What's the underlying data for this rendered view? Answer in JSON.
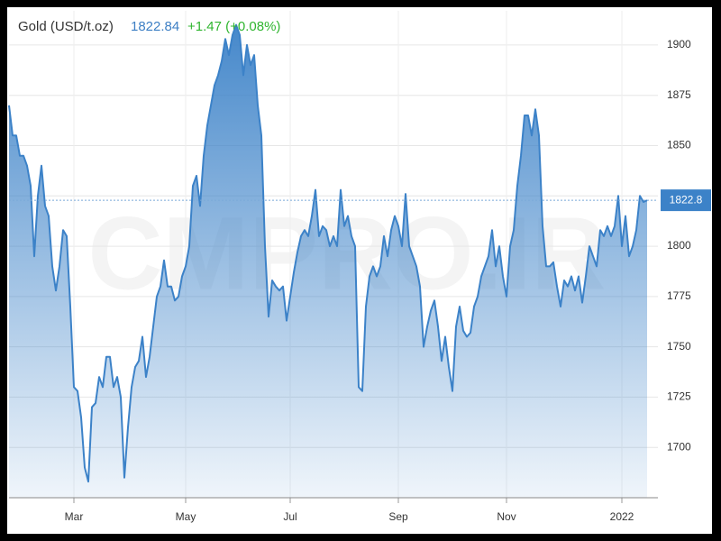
{
  "header": {
    "title": "Gold (USD/t.oz)",
    "change": "+1.47 (+0.08%)"
  },
  "watermark": "CMPRO.IR",
  "chart_data": {
    "type": "area",
    "color": "#3c82c8",
    "grid": true,
    "ylim": [
      1675,
      1917
    ],
    "yticks": [
      1700,
      1725,
      1750,
      1775,
      1800,
      1825,
      1850,
      1875,
      1900
    ],
    "last_value_label": "1822.8",
    "categories": [
      null,
      null,
      null,
      null,
      null,
      null,
      null,
      null,
      null,
      null,
      null,
      null,
      null,
      null,
      null,
      null,
      null,
      null,
      "Mar",
      null,
      null,
      null,
      null,
      null,
      null,
      null,
      null,
      null,
      null,
      null,
      null,
      null,
      null,
      null,
      null,
      null,
      null,
      null,
      null,
      null,
      null,
      null,
      null,
      null,
      null,
      null,
      null,
      null,
      null,
      "May",
      null,
      null,
      null,
      null,
      null,
      null,
      null,
      null,
      null,
      null,
      null,
      null,
      null,
      null,
      null,
      null,
      null,
      null,
      null,
      null,
      null,
      null,
      null,
      null,
      null,
      null,
      null,
      null,
      "Jul",
      null,
      null,
      null,
      null,
      null,
      null,
      null,
      null,
      null,
      null,
      null,
      null,
      null,
      null,
      null,
      null,
      null,
      null,
      null,
      null,
      null,
      null,
      null,
      null,
      null,
      null,
      null,
      null,
      null,
      "Sep",
      null,
      null,
      null,
      null,
      null,
      null,
      null,
      null,
      null,
      null,
      null,
      null,
      null,
      null,
      null,
      null,
      null,
      null,
      null,
      null,
      null,
      null,
      null,
      null,
      null,
      null,
      null,
      null,
      null,
      "Nov",
      null,
      null,
      null,
      null,
      null,
      null,
      null,
      null,
      null,
      null,
      null,
      null,
      null,
      null,
      null,
      null,
      null,
      null,
      null,
      null,
      null,
      null,
      null,
      null,
      null,
      null,
      null,
      null,
      null,
      null,
      null,
      "2022",
      null,
      null,
      null,
      null,
      null,
      null,
      null
    ],
    "values": [
      1870,
      1855,
      1855,
      1845,
      1845,
      1840,
      1830,
      1795,
      1825,
      1840,
      1820,
      1815,
      1790,
      1778,
      1790,
      1808,
      1805,
      1770,
      1730,
      1728,
      1715,
      1690,
      1683,
      1720,
      1722,
      1735,
      1730,
      1745,
      1745,
      1730,
      1735,
      1725,
      1685,
      1710,
      1730,
      1740,
      1743,
      1755,
      1735,
      1745,
      1760,
      1775,
      1780,
      1793,
      1780,
      1780,
      1773,
      1775,
      1785,
      1790,
      1800,
      1830,
      1835,
      1820,
      1845,
      1860,
      1870,
      1880,
      1885,
      1892,
      1903,
      1895,
      1905,
      1910,
      1905,
      1885,
      1900,
      1890,
      1895,
      1870,
      1855,
      1800,
      1765,
      1783,
      1780,
      1778,
      1780,
      1763,
      1775,
      1787,
      1797,
      1805,
      1808,
      1805,
      1815,
      1828,
      1805,
      1810,
      1808,
      1800,
      1805,
      1800,
      1828,
      1810,
      1815,
      1805,
      1800,
      1730,
      1728,
      1770,
      1785,
      1790,
      1785,
      1790,
      1805,
      1795,
      1808,
      1815,
      1810,
      1800,
      1826,
      1800,
      1795,
      1790,
      1780,
      1750,
      1760,
      1768,
      1773,
      1760,
      1743,
      1755,
      1740,
      1728,
      1760,
      1770,
      1758,
      1755,
      1757,
      1770,
      1775,
      1785,
      1790,
      1795,
      1808,
      1790,
      1800,
      1785,
      1775,
      1800,
      1808,
      1830,
      1845,
      1865,
      1865,
      1855,
      1868,
      1855,
      1810,
      1790,
      1790,
      1792,
      1780,
      1770,
      1783,
      1780,
      1785,
      1778,
      1785,
      1772,
      1785,
      1800,
      1795,
      1790,
      1808,
      1805,
      1810,
      1805,
      1810,
      1825,
      1800,
      1815,
      1795,
      1800,
      1808,
      1825,
      1822,
      1822.84
    ]
  }
}
